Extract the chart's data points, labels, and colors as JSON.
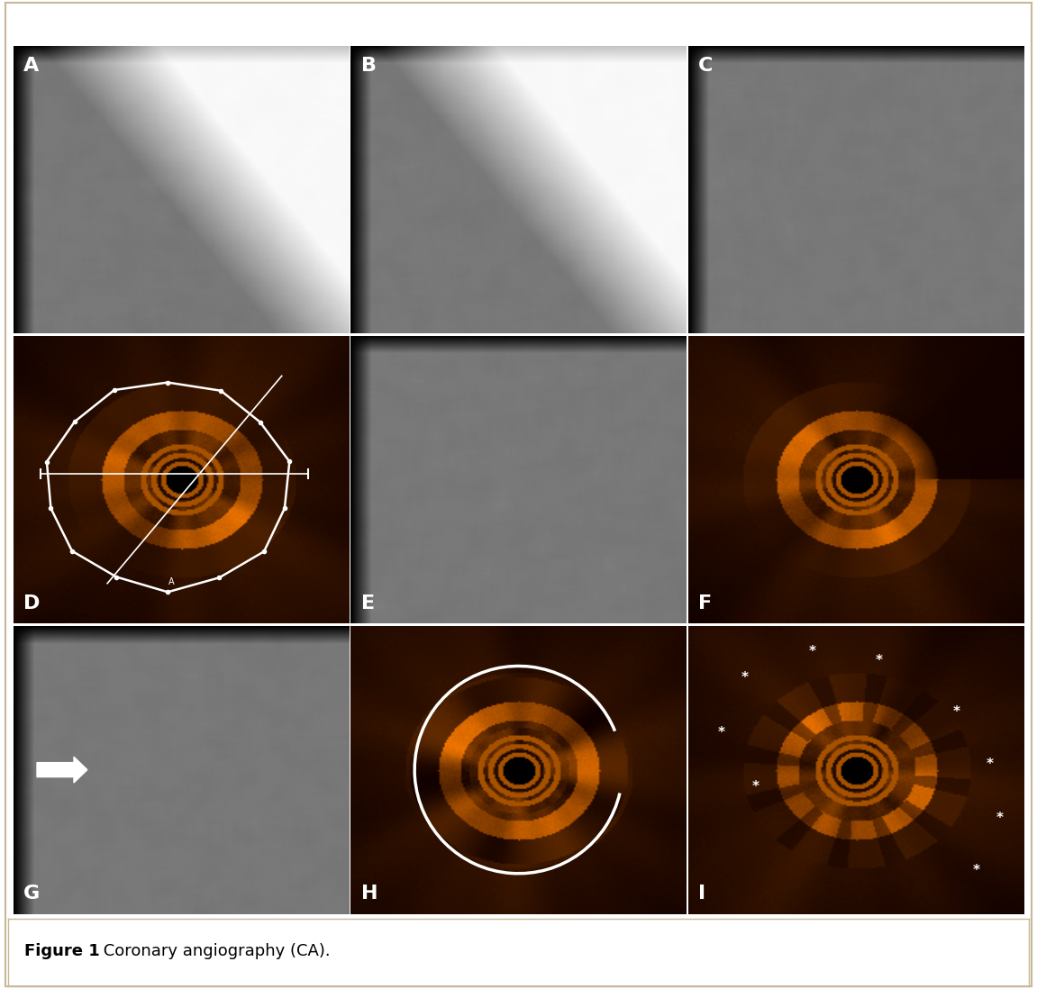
{
  "figure_width": 11.51,
  "figure_height": 10.98,
  "dpi": 100,
  "caption_bold": "Figure 1",
  "caption_normal": " Coronary angiography (CA).",
  "labels": [
    "A",
    "B",
    "C",
    "D",
    "E",
    "F",
    "G",
    "H",
    "I"
  ],
  "background_color": "#ffffff",
  "border_color": "#c8b89a",
  "caption_fontsize": 13,
  "label_fontsize": 16,
  "label_color": "#ffffff"
}
